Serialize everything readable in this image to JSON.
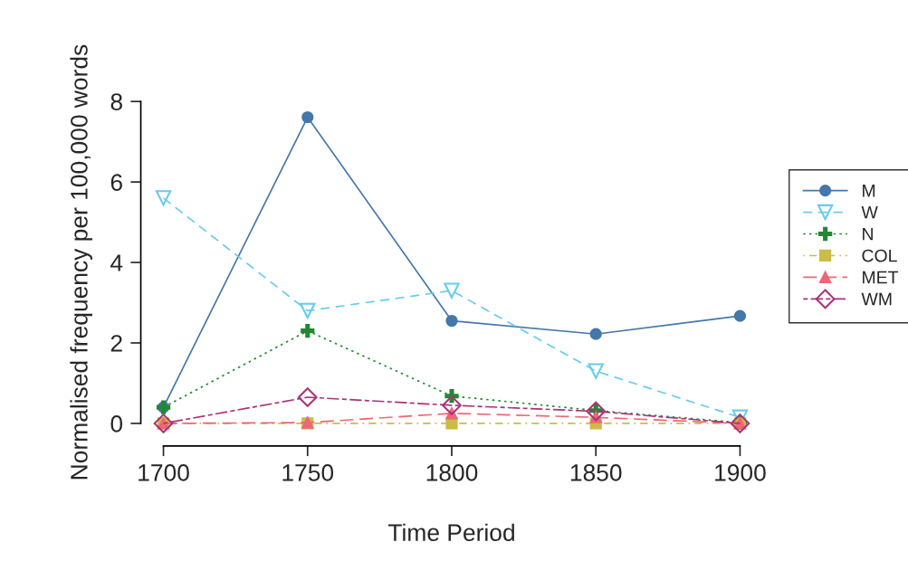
{
  "chart_data": {
    "type": "line",
    "xlabel": "Time Period",
    "ylabel": "Normalised frequency per 100,000 words",
    "x": [
      1700,
      1750,
      1800,
      1850,
      1900
    ],
    "xlim": [
      1700,
      1900
    ],
    "xticks": [
      1700,
      1750,
      1800,
      1850,
      1900
    ],
    "ylim": [
      0,
      8
    ],
    "yticks": [
      0,
      2,
      4,
      6,
      8
    ],
    "grid": false,
    "legend": "right",
    "series": [
      {
        "name": "M",
        "color": "#4477aa",
        "marker": "circle",
        "line_style": "solid",
        "values": [
          0.4,
          7.61,
          2.55,
          2.22,
          2.67
        ]
      },
      {
        "name": "W",
        "color": "#66ccee",
        "marker": "triangle",
        "line_style": "dashed",
        "values": [
          5.6,
          2.8,
          3.3,
          1.3,
          0.15
        ]
      },
      {
        "name": "N",
        "color": "#228833",
        "marker": "cross",
        "line_style": "dotted",
        "values": [
          0.4,
          2.3,
          0.68,
          0.32,
          0.02
        ]
      },
      {
        "name": "COL",
        "color": "#ccbb44",
        "marker": "square",
        "line_style": "dashdot",
        "values": [
          0,
          0,
          0,
          0,
          0
        ]
      },
      {
        "name": "MET",
        "color": "#ee6677",
        "marker": "triangle",
        "line_style": "longdash",
        "values": [
          0,
          0.02,
          0.25,
          0.15,
          0
        ]
      },
      {
        "name": "WM",
        "color": "#aa3377",
        "marker": "diamond",
        "line_style": "twodash",
        "values": [
          0,
          0.65,
          0.45,
          0.3,
          0
        ]
      }
    ]
  }
}
